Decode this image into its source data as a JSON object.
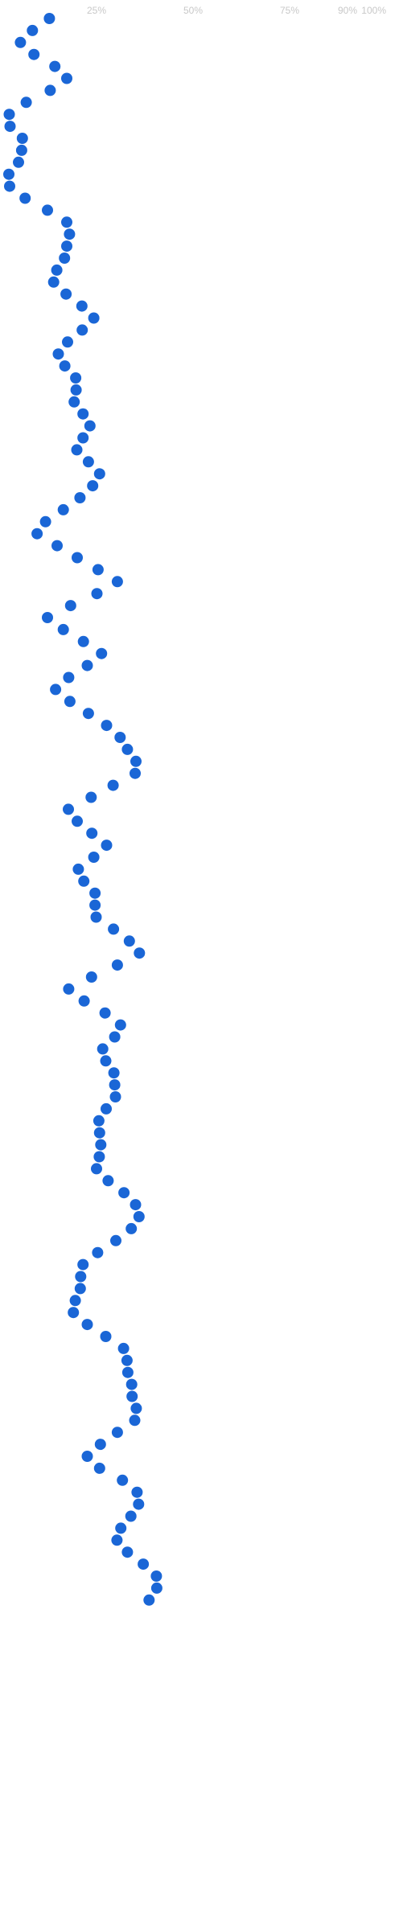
{
  "chart_data": {
    "type": "scatter",
    "orientation": "vertical",
    "axis": {
      "position": "top",
      "ticks": [
        {
          "value": 25,
          "label": "25%"
        },
        {
          "value": 50,
          "label": "50%"
        },
        {
          "value": 75,
          "label": "75%"
        },
        {
          "value": 90,
          "label": "90%"
        },
        {
          "value": 100,
          "label": "100%"
        }
      ]
    },
    "grid": false,
    "legend": "none",
    "colors": {
      "marker": "#1a66d6",
      "tick_text": "#c8c8c8",
      "background": "#ffffff"
    },
    "series": [
      {
        "values": [
          12.8,
          8.4,
          5.3,
          8.8,
          14.2,
          17.3,
          13.0,
          6.8,
          2.4,
          2.6,
          5.8,
          5.6,
          4.8,
          2.3,
          2.5,
          6.5,
          12.3,
          17.3,
          18.0,
          17.3,
          16.7,
          14.7,
          13.9,
          17.1,
          21.2,
          24.3,
          21.3,
          17.5,
          15.1,
          16.8,
          19.6,
          19.7,
          19.2,
          21.5,
          23.3,
          21.5,
          19.9,
          22.9,
          25.8,
          24.0,
          20.7,
          16.4,
          11.8,
          9.6,
          14.8,
          20.0,
          25.4,
          30.4,
          25.1,
          18.3,
          12.3,
          16.4,
          21.6,
          26.3,
          22.6,
          17.8,
          14.4,
          18.1,
          22.9,
          27.6,
          31.1,
          33.0,
          35.2,
          35.0,
          29.3,
          23.6,
          17.7,
          20.0,
          23.8,
          27.6,
          24.3,
          20.3,
          21.7,
          24.6,
          24.6,
          24.9,
          29.4,
          33.5,
          36.1,
          30.4,
          23.7,
          17.8,
          21.8,
          27.2,
          31.2,
          29.7,
          26.6,
          27.4,
          29.5,
          29.7,
          29.9,
          27.5,
          25.6,
          25.8,
          26.1,
          25.7,
          25.0,
          28.0,
          32.1,
          35.1,
          36.0,
          34.0,
          30.0,
          25.3,
          21.5,
          20.9,
          20.8,
          19.5,
          19.0,
          22.6,
          27.4,
          32.0,
          32.9,
          33.1,
          34.1,
          34.2,
          35.3,
          34.9,
          30.4,
          26.0,
          22.6,
          25.8,
          31.7,
          35.5,
          35.9,
          33.9,
          31.3,
          30.3,
          33.0,
          37.1,
          40.5,
          40.6,
          38.6
        ]
      }
    ]
  }
}
